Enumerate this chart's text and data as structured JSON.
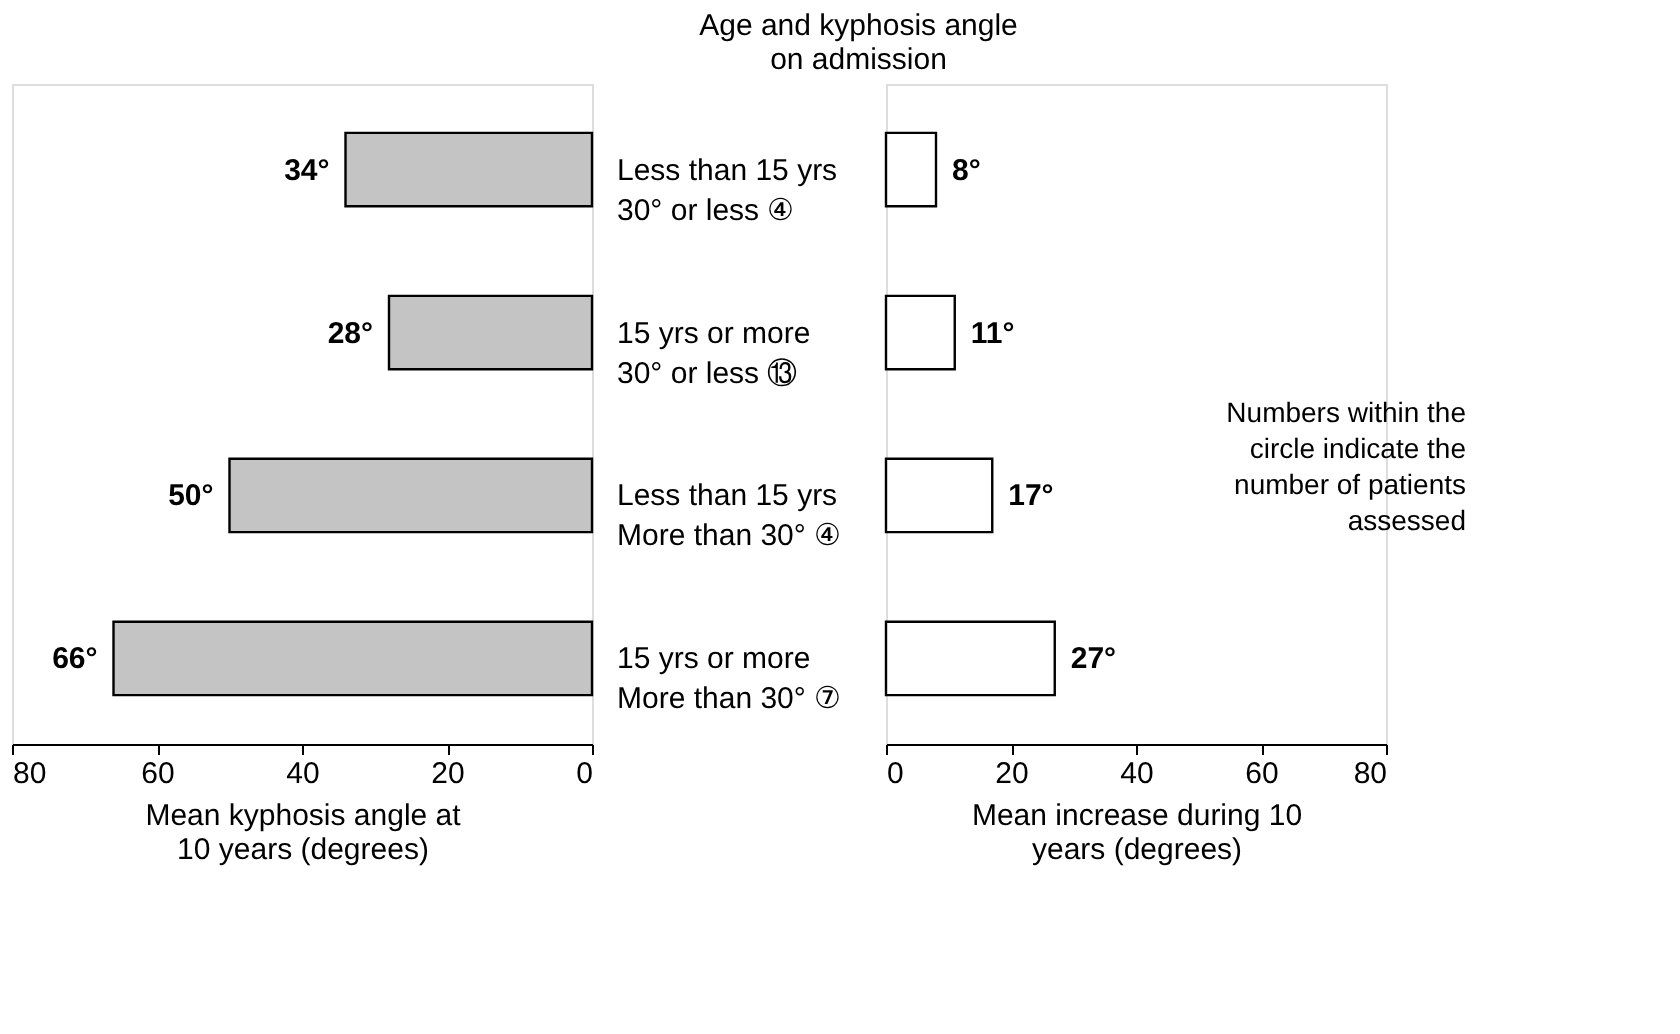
{
  "chart_data": [
    {
      "type": "bar",
      "orientation": "horizontal",
      "title": "Age and kyphosis angle on admission",
      "categories": [
        "Less than 15 yrs\n30° or less ④",
        "15 yrs or more\n30° or less ⑬",
        "Less than 15 yrs\nMore than 30° ④",
        "15 yrs or more\nMore than 30° ⑦"
      ],
      "values": [
        34,
        28,
        50,
        66
      ],
      "color": "#c4c4c4",
      "value_labels": [
        "34°",
        "28°",
        "50°",
        "66°"
      ],
      "xlim": [
        80,
        0
      ],
      "xticks": [
        80,
        60,
        40,
        20,
        0
      ],
      "xlabel": "Mean kyphosis angle at 10 years (degrees)",
      "grid": false
    },
    {
      "type": "bar",
      "orientation": "horizontal",
      "categories": [
        null,
        null,
        null,
        null
      ],
      "values": [
        8,
        11,
        17,
        27
      ],
      "color": "#ffffff",
      "value_labels": [
        "8°",
        "11°",
        "17°",
        "27°"
      ],
      "xlim": [
        0,
        80
      ],
      "xticks": [
        0,
        20,
        40,
        60,
        80
      ],
      "xlabel": "Mean increase during 10 years (degrees)",
      "grid": false,
      "tick_labels": "x",
      "annotations": [
        "Numbers within the circle indicate the number of patients assessed"
      ]
    }
  ]
}
